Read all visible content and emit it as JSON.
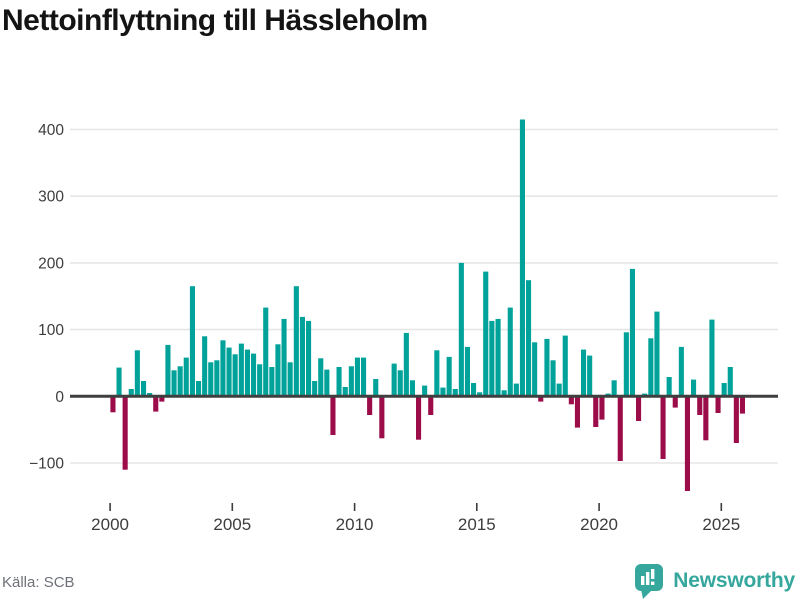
{
  "title": "Nettoinflyttning till Hässleholm",
  "footer": {
    "source": "Källa: SCB",
    "brand": "Newsworthy"
  },
  "colors": {
    "positive": "#00a29a",
    "negative": "#9b0c49",
    "axis": "#3f3f3f",
    "grid": "#e6e6e6",
    "tick_text": "#3d3d3d",
    "muted_text": "#6e7278",
    "brand_teal": "#35a79d",
    "title_text": "#141414"
  },
  "chart_data": {
    "type": "bar",
    "title": "Nettoinflyttning till Hässleholm",
    "x_unit": "quarter",
    "start_year": 2000,
    "start": "2000Q1",
    "end": "2025Q4",
    "grid": true,
    "legend": false,
    "ylim": [
      -150,
      450
    ],
    "yticks": [
      -100,
      0,
      100,
      200,
      300,
      400
    ],
    "ytick_labels": [
      "−100",
      "0",
      "100",
      "200",
      "300",
      "400"
    ],
    "xticks": [
      2000,
      2005,
      2010,
      2015,
      2020,
      2025
    ],
    "values": [
      -24,
      43,
      -110,
      11,
      69,
      23,
      5,
      -23,
      -8,
      77,
      39,
      45,
      58,
      165,
      23,
      90,
      51,
      54,
      84,
      73,
      63,
      79,
      70,
      64,
      48,
      133,
      44,
      78,
      116,
      51,
      165,
      119,
      113,
      23,
      57,
      40,
      -58,
      44,
      14,
      45,
      58,
      58,
      -28,
      26,
      -63,
      0,
      49,
      39,
      95,
      24,
      -65,
      16,
      -28,
      69,
      13,
      59,
      11,
      200,
      74,
      20,
      6,
      187,
      113,
      116,
      9,
      133,
      19,
      415,
      174,
      81,
      -8,
      86,
      54,
      19,
      91,
      -12,
      -47,
      70,
      61,
      -46,
      -35,
      4,
      24,
      -97,
      96,
      191,
      -37,
      4,
      87,
      127,
      -94,
      29,
      -17,
      74,
      -142,
      25,
      -28,
      -66,
      115,
      -25,
      20,
      44,
      -70,
      -26
    ]
  }
}
